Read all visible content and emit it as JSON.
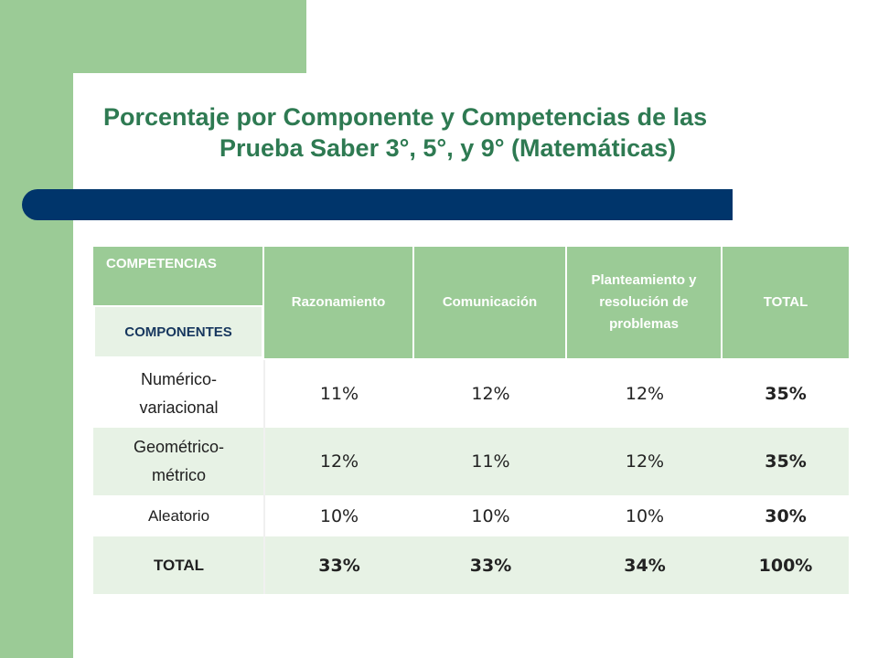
{
  "title": {
    "line1": "Porcentaje por Componente y Competencias de las",
    "line2": "Prueba Saber 3°, 5°, y 9° (Matemáticas)"
  },
  "table": {
    "header": {
      "competencias": "COMPETENCIAS",
      "componentes": "COMPONENTES",
      "razonamiento": "Razonamiento",
      "comunicacion": "Comunicación",
      "planteamiento": "Planteamiento y resolución de problemas",
      "total": "TOTAL"
    },
    "rows": [
      {
        "label": "Numérico-variacional",
        "razonamiento": "11%",
        "comunicacion": "12%",
        "planteamiento": "12%",
        "total": "35%"
      },
      {
        "label": "Geométrico-métrico",
        "razonamiento": "12%",
        "comunicacion": "11%",
        "planteamiento": "12%",
        "total": "35%"
      },
      {
        "label": "Aleatorio",
        "razonamiento": "10%",
        "comunicacion": "10%",
        "planteamiento": "10%",
        "total": "30%"
      },
      {
        "label": "TOTAL",
        "razonamiento": "33%",
        "comunicacion": "33%",
        "planteamiento": "34%",
        "total": "100%"
      }
    ]
  },
  "colors": {
    "green": "#9bcb96",
    "light_green": "#e7f2e5",
    "navy": "#00356b",
    "title_green": "#2e7a52"
  }
}
